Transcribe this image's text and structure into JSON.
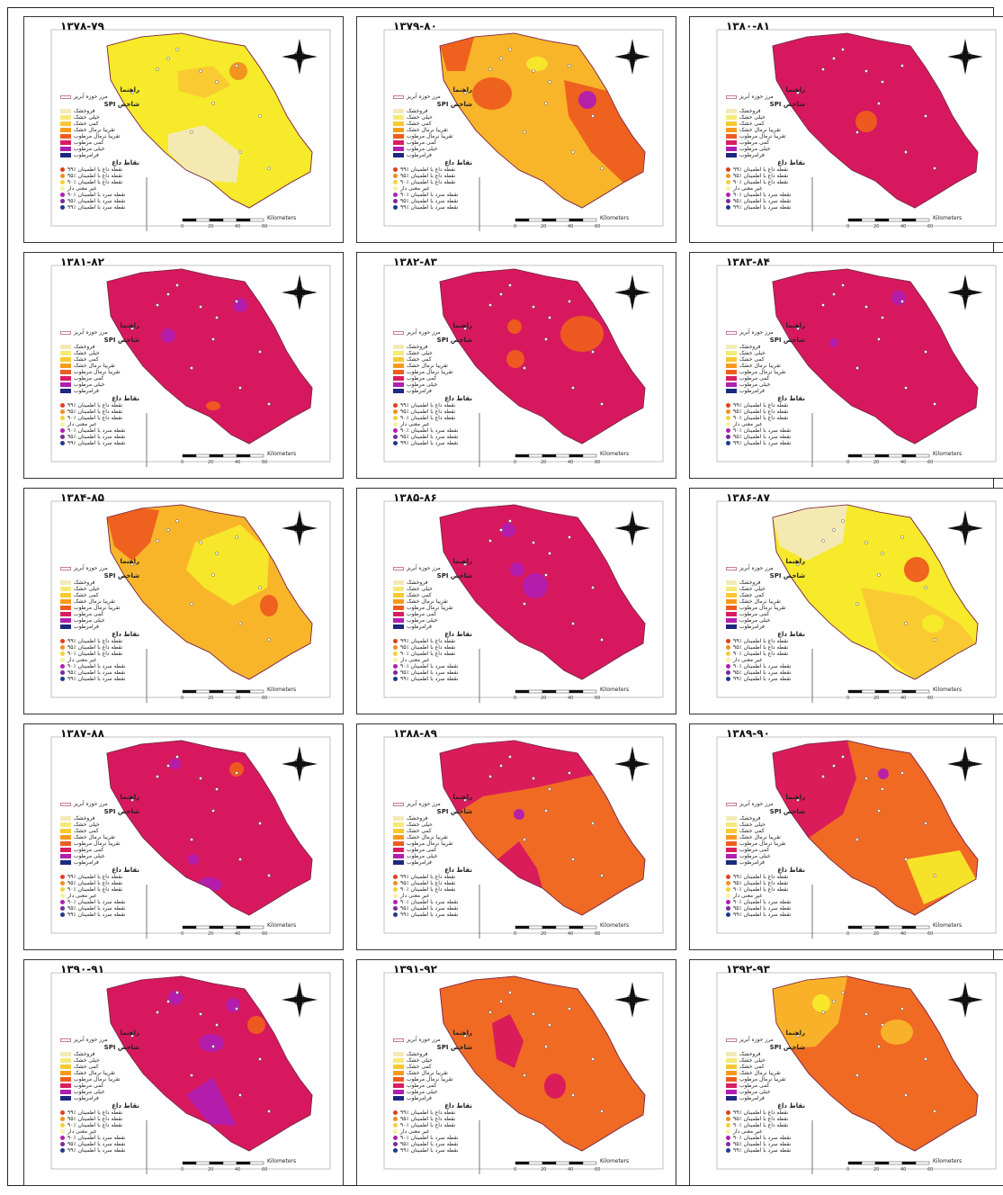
{
  "legend": {
    "title": "راهنما",
    "boundary": "مرز حوزه آبریز",
    "spi_title": "شاخص SPI",
    "spi_classes": [
      "فروخشک",
      "خیلی خشک",
      "کمی خشک",
      "تقریبا نرمال خشک",
      "تقریبا نرمال مرطوب",
      "کمی مرطوب",
      "خیلی مرطوب",
      "فرامرطوب"
    ],
    "spi_colors": [
      "#f3eab8",
      "#f6e978",
      "#f9c833",
      "#f89a1e",
      "#ee5d1e",
      "#d81e60",
      "#b21eb0",
      "#1e2880"
    ],
    "points_title": "نقاط داغ",
    "points": [
      "نقطه داغ با اطمینان ٪۹۹",
      "نقطه داغ با اطمینان ٪۹۵",
      "نقطه داغ با اطمینان ٪۹۰",
      "غیر معنی دار",
      "نقطه سرد با اطمینان ٪۹۰",
      "نقطه سرد با اطمینان ٪۹۵",
      "نقطه سرد با اطمینان ٪۹۹"
    ],
    "point_colors": [
      "#e0401e",
      "#f09020",
      "#f2d23a",
      "#f6f0a0",
      "#b21eb0",
      "#7a2a9a",
      "#1e3a8a"
    ]
  },
  "scale": {
    "unit": "Kilometers",
    "ticks": [
      "0",
      "20",
      "40",
      "60"
    ]
  },
  "panels": [
    {
      "title": "۱۳۷۸-۷۹",
      "base": "#f6ea2a"
    },
    {
      "title": "۱۳۷۹-۸۰",
      "base": "#f9b52a"
    },
    {
      "title": "۱۳۸۰-۸۱",
      "base": "#d8185e"
    },
    {
      "title": "۱۳۸۱-۸۲",
      "base": "#d8185e"
    },
    {
      "title": "۱۳۸۲-۸۳",
      "base": "#d8185e"
    },
    {
      "title": "۱۳۸۳-۸۴",
      "base": "#d8185e"
    },
    {
      "title": "۱۳۸۴-۸۵",
      "base": "#f9b52a"
    },
    {
      "title": "۱۳۸۵-۸۶",
      "base": "#d8185e"
    },
    {
      "title": "۱۳۸۶-۸۷",
      "base": "#f6ea2a"
    },
    {
      "title": "۱۳۸۷-۸۸",
      "base": "#d8185e"
    },
    {
      "title": "۱۳۸۸-۸۹",
      "base": "#f06a24"
    },
    {
      "title": "۱۳۸۹-۹۰",
      "base": "#f06a24"
    },
    {
      "title": "۱۳۹۰-۹۱",
      "base": "#d8185e"
    },
    {
      "title": "۱۳۹۱-۹۲",
      "base": "#f06a24"
    },
    {
      "title": "۱۳۹۲-۹۳",
      "base": "#f06a24"
    }
  ]
}
